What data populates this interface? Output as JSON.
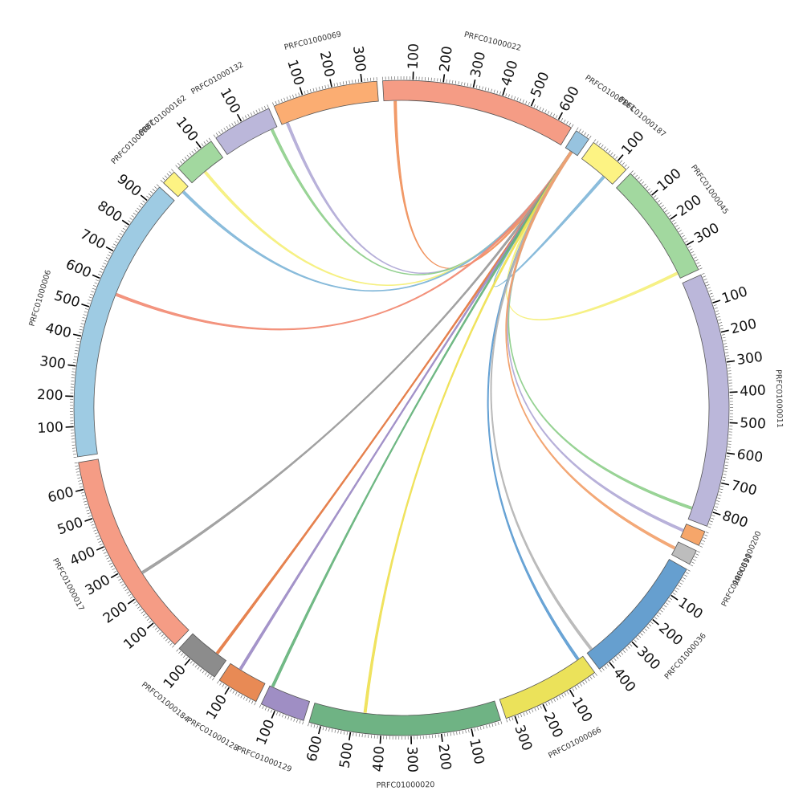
{
  "chart_data": {
    "type": "chord",
    "segments": [
      {
        "name": "PRFC01000022",
        "length": 650,
        "color": "#f59c85",
        "ticks": [
          "100",
          "200",
          "300",
          "400",
          "500",
          "600"
        ]
      },
      {
        "name": "PRFC01000161",
        "length": 50,
        "color": "#97c3df",
        "ticks": []
      },
      {
        "name": "PRFC01000187",
        "length": 140,
        "color": "#fdf383",
        "ticks": [
          "100"
        ]
      },
      {
        "name": "PRFC01000045",
        "length": 390,
        "color": "#a2d89f",
        "ticks": [
          "100",
          "200",
          "300"
        ]
      },
      {
        "name": "PRFC01000011",
        "length": 850,
        "color": "#bbb7da",
        "ticks": [
          "100",
          "200",
          "300",
          "400",
          "500",
          "600",
          "700",
          "800"
        ]
      },
      {
        "name": "PRFC01000200",
        "length": 50,
        "color": "#f6a66a",
        "ticks": []
      },
      {
        "name": "PRFC01000591",
        "length": 50,
        "color": "#bdbdbd",
        "ticks": []
      },
      {
        "name": "PRFC01000036",
        "length": 440,
        "color": "#669fcf",
        "ticks": [
          "100",
          "200",
          "300",
          "400"
        ]
      },
      {
        "name": "PRFC01000066",
        "length": 330,
        "color": "#ebe25a",
        "ticks": [
          "100",
          "200",
          "300"
        ]
      },
      {
        "name": "PRFC01000020",
        "length": 640,
        "color": "#6fb384",
        "ticks": [
          "100",
          "200",
          "300",
          "400",
          "500",
          "600"
        ]
      },
      {
        "name": "PRFC01000129",
        "length": 150,
        "color": "#9f8ec4",
        "ticks": [
          "100"
        ]
      },
      {
        "name": "PRFC01000128",
        "length": 140,
        "color": "#e88a55",
        "ticks": [
          "100"
        ]
      },
      {
        "name": "PRFC01000184",
        "length": 150,
        "color": "#8c8c8c",
        "ticks": [
          "100"
        ]
      },
      {
        "name": "PRFC01000017",
        "length": 690,
        "color": "#f59c85",
        "ticks": [
          "100",
          "200",
          "300",
          "400",
          "500",
          "600"
        ]
      },
      {
        "name": "PRFC01000006",
        "length": 960,
        "color": "#9ecbe3",
        "ticks": [
          "100",
          "200",
          "300",
          "400",
          "500",
          "600",
          "700",
          "800",
          "900"
        ]
      },
      {
        "name": "PRFC01000087",
        "length": 50,
        "color": "#fdf383",
        "ticks": []
      },
      {
        "name": "PRFC01000162",
        "length": 140,
        "color": "#a2d89f",
        "ticks": [
          "100"
        ]
      },
      {
        "name": "PRFC01000132",
        "length": 200,
        "color": "#bbb7da",
        "ticks": [
          "100"
        ]
      },
      {
        "name": "PRFC01000069",
        "length": 350,
        "color": "#fbad72",
        "ticks": [
          "100",
          "200",
          "300"
        ]
      }
    ],
    "links": [
      {
        "from": "PRFC01000161",
        "from_pos": 25,
        "to": "PRFC01000022",
        "to_pos": 40,
        "color": "#f0905a"
      },
      {
        "from": "PRFC01000161",
        "from_pos": 25,
        "to": "PRFC01000187",
        "to_pos": 100,
        "color": "#7fb6d8"
      },
      {
        "from": "PRFC01000161",
        "from_pos": 25,
        "to": "PRFC01000045",
        "to_pos": 370,
        "color": "#f5ef7a"
      },
      {
        "from": "PRFC01000161",
        "from_pos": 25,
        "to": "PRFC01000069",
        "to_pos": 20,
        "color": "#b1aad6"
      },
      {
        "from": "PRFC01000161",
        "from_pos": 25,
        "to": "PRFC01000132",
        "to_pos": 180,
        "color": "#8fcf8c"
      },
      {
        "from": "PRFC01000161",
        "from_pos": 25,
        "to": "PRFC01000162",
        "to_pos": 60,
        "color": "#f5ef7a"
      },
      {
        "from": "PRFC01000161",
        "from_pos": 25,
        "to": "PRFC01000087",
        "to_pos": 25,
        "color": "#7fb6d8"
      },
      {
        "from": "PRFC01000161",
        "from_pos": 25,
        "to": "PRFC01000006",
        "to_pos": 570,
        "color": "#f28a72"
      },
      {
        "from": "PRFC01000161",
        "from_pos": 25,
        "to": "PRFC01000017",
        "to_pos": 260,
        "color": "#9a9a9a"
      },
      {
        "from": "PRFC01000161",
        "from_pos": 25,
        "to": "PRFC01000184",
        "to_pos": 40,
        "color": "#e3773f"
      },
      {
        "from": "PRFC01000161",
        "from_pos": 25,
        "to": "PRFC01000128",
        "to_pos": 100,
        "color": "#9b8ac4"
      },
      {
        "from": "PRFC01000161",
        "from_pos": 25,
        "to": "PRFC01000129",
        "to_pos": 140,
        "color": "#64b27a"
      },
      {
        "from": "PRFC01000161",
        "from_pos": 25,
        "to": "PRFC01000020",
        "to_pos": 460,
        "color": "#eee050"
      },
      {
        "from": "PRFC01000161",
        "from_pos": 25,
        "to": "PRFC01000066",
        "to_pos": 20,
        "color": "#5b9bd1"
      },
      {
        "from": "PRFC01000161",
        "from_pos": 25,
        "to": "PRFC01000036",
        "to_pos": 420,
        "color": "#b5b5b5"
      },
      {
        "from": "PRFC01000161",
        "from_pos": 25,
        "to": "PRFC01000011",
        "to_pos": 810,
        "color": "#8fcf8c"
      },
      {
        "from": "PRFC01000161",
        "from_pos": 25,
        "to": "PRFC01000200",
        "to_pos": 25,
        "color": "#b1aad6"
      },
      {
        "from": "PRFC01000161",
        "from_pos": 25,
        "to": "PRFC01000591",
        "to_pos": 25,
        "color": "#f2a06a"
      }
    ]
  }
}
